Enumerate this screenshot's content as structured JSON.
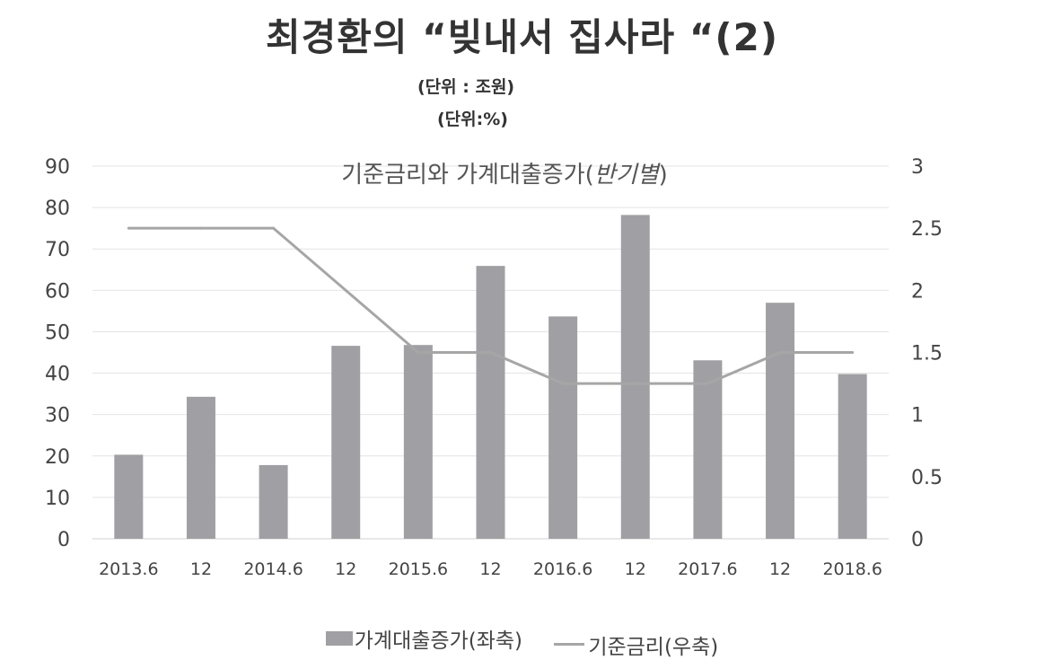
{
  "title": "최경환의 “빚내서 집사라 “(2)",
  "unit_left": "(단위 : 조원)",
  "unit_right": "(단위:%)",
  "chart_data": {
    "type": "bar",
    "title": "기준금리와 가계대출증가(반기별)",
    "title_main": "기준금리와 가계대출증가(",
    "title_italic": "반기별",
    "title_close": ")",
    "categories": [
      "2013.6",
      "12",
      "2014.6",
      "12",
      "2015.6",
      "12",
      "2016.6",
      "12",
      "2017.6",
      "12",
      "2018.6"
    ],
    "series": [
      {
        "name": "가계대출증가(좌축)",
        "type": "bar",
        "axis": "left",
        "color": "#a0a0a4",
        "values": [
          20.3,
          34.3,
          17.8,
          46.6,
          46.8,
          65.9,
          53.7,
          78.2,
          43.1,
          57.0,
          39.8
        ]
      },
      {
        "name": "기준금리(우축)",
        "type": "line",
        "axis": "right",
        "color": "#a6a6a6",
        "values": [
          2.5,
          2.5,
          2.5,
          2.0,
          1.5,
          1.5,
          1.25,
          1.25,
          1.25,
          1.5,
          1.5
        ]
      }
    ],
    "y_left": {
      "min": 0,
      "max": 90,
      "ticks": [
        "0",
        "10",
        "20",
        "30",
        "40",
        "50",
        "60",
        "70",
        "80",
        "90"
      ]
    },
    "y_right": {
      "min": 0,
      "max": 3,
      "ticks": [
        "0",
        "0.5",
        "1",
        "1.5",
        "2",
        "2.5",
        "3"
      ]
    },
    "grid": true,
    "legend_position": "bottom"
  }
}
